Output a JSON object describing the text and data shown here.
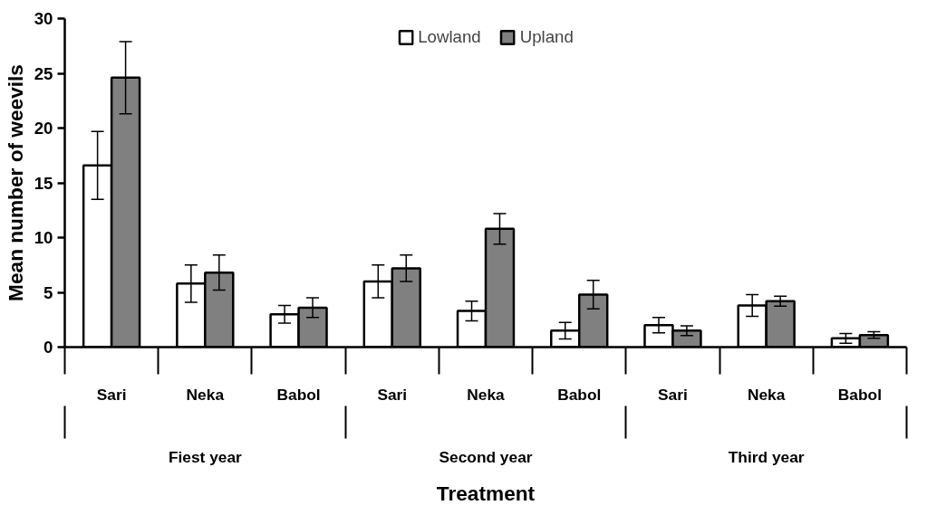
{
  "chart_data": {
    "type": "bar",
    "xlabel": "Treatment",
    "ylabel": "Mean number of weevils",
    "categories": [
      "Sari",
      "Neka",
      "Babol",
      "Sari",
      "Neka",
      "Babol",
      "Sari",
      "Neka",
      "Babol"
    ],
    "annotations": [
      "Fiest year",
      "Second year",
      "Third year"
    ],
    "series": [
      {
        "name": "Lowland",
        "color": "#ffffff",
        "values": [
          16.6,
          5.8,
          3.0,
          6.0,
          3.3,
          1.5,
          2.0,
          3.8,
          0.8
        ],
        "errors": [
          3.1,
          1.7,
          0.8,
          1.5,
          0.9,
          0.75,
          0.7,
          1.0,
          0.45
        ]
      },
      {
        "name": "Upland",
        "color": "#808080",
        "values": [
          24.6,
          6.8,
          3.6,
          7.2,
          10.8,
          4.8,
          1.5,
          4.2,
          1.1
        ],
        "errors": [
          3.3,
          1.6,
          0.9,
          1.2,
          1.4,
          1.3,
          0.45,
          0.45,
          0.3
        ]
      }
    ],
    "ylim": [
      0,
      30
    ],
    "yticks": [
      0,
      5,
      10,
      15,
      20,
      25,
      30
    ],
    "grid": false,
    "legend": "top"
  }
}
